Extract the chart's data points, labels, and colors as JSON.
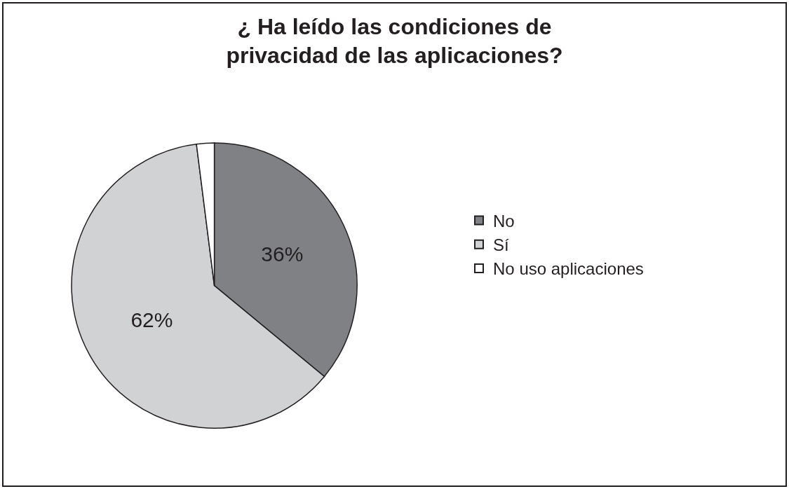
{
  "chart_data": {
    "type": "pie",
    "title": "¿ Ha leído las condiciones de\nprivacidad de las aplicaciones?",
    "categories": [
      "No",
      "Sí",
      "No uso aplicaciones"
    ],
    "values": [
      36,
      62,
      2
    ],
    "value_labels": [
      "36%",
      "62%",
      null
    ],
    "colors": [
      "#808184",
      "#d1d2d4",
      "#ffffff"
    ],
    "legend": "right"
  }
}
